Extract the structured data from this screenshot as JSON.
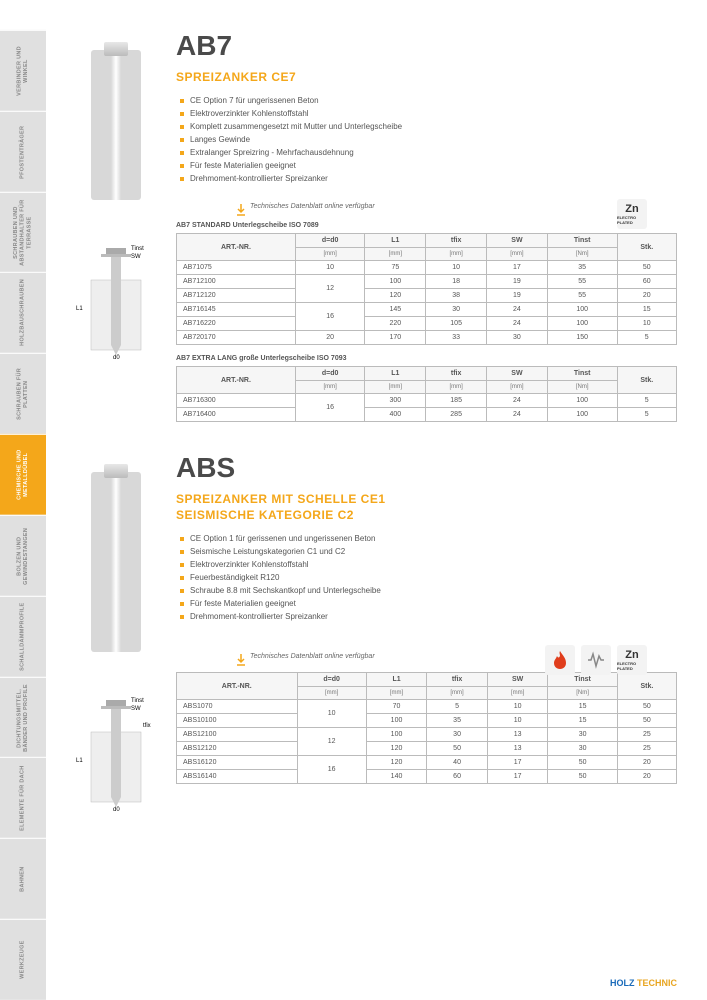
{
  "colors": {
    "accent": "#f4a71a",
    "text": "#333333",
    "grid": "#bbbbbb",
    "bg": "#ffffff",
    "holz": "#1a6bba",
    "footer_accent": "#e8a520"
  },
  "sidebar": [
    {
      "label": "VERBINDER UND WINKEL",
      "color": "#e0e0e0"
    },
    {
      "label": "PFOSTENTRÄGER",
      "color": "#e0e0e0"
    },
    {
      "label": "SCHRAUBEN UND ABSTANDHALTER FÜR TERRASSE",
      "color": "#e0e0e0"
    },
    {
      "label": "HOLZBAUSCHRAUBEN",
      "color": "#e0e0e0"
    },
    {
      "label": "SCHRAUBEN FÜR PLATTEN",
      "color": "#e0e0e0"
    },
    {
      "label": "CHEMISCHE UND METALLDÜBEL",
      "color": "#f4a71a"
    },
    {
      "label": "BOLZEN UND GEWINDESTANGEN",
      "color": "#e0e0e0"
    },
    {
      "label": "SCHALLDÄMMPROFILE",
      "color": "#e0e0e0"
    },
    {
      "label": "DICHTUNGSMITTEL, BÄNDER UND PROFILE",
      "color": "#e0e0e0"
    },
    {
      "label": "ELEMENTE FÜR DACH",
      "color": "#e0e0e0"
    },
    {
      "label": "BAHNEN",
      "color": "#e0e0e0"
    },
    {
      "label": "WERKZEUGE",
      "color": "#e0e0e0"
    }
  ],
  "ab7": {
    "title": "AB7",
    "subtitle": "SPREIZANKER CE7",
    "features": [
      "CE Option 7 für ungerissenen Beton",
      "Elektroverzinkter Kohlenstoffstahl",
      "Komplett zusammengesetzt mit Mutter und Unterlegscheibe",
      "Langes Gewinde",
      "Extralanger Spreizring - Mehrfachausdehnung",
      "Für feste Materialien geeignet",
      "Drehmoment-kontrollierter Spreizanker"
    ],
    "notice": "Technisches Datenblatt online verfügbar",
    "anchor_height": 150,
    "diagram_labels": {
      "tinst": "Tinst",
      "sw": "SW",
      "l1": "L1",
      "d0": "d0"
    },
    "table1": {
      "caption": "AB7 STANDARD Unterlegscheibe ISO 7089",
      "columns": [
        "ART.-NR.",
        "d=d0",
        "L1",
        "tfix",
        "SW",
        "Tinst",
        "Stk."
      ],
      "units": [
        "",
        "[mm]",
        "[mm]",
        "[mm]",
        "[mm]",
        "[Nm]",
        ""
      ],
      "rows": [
        [
          "AB71075",
          {
            "v": "10",
            "rowspan": 1
          },
          "75",
          "10",
          "17",
          "35",
          "50"
        ],
        [
          "AB712100",
          {
            "v": "12",
            "rowspan": 2
          },
          "100",
          "18",
          "19",
          "55",
          "60"
        ],
        [
          "AB712120",
          null,
          "120",
          "38",
          "19",
          "55",
          "20"
        ],
        [
          "AB716145",
          {
            "v": "16",
            "rowspan": 2
          },
          "145",
          "30",
          "24",
          "100",
          "15"
        ],
        [
          "AB716220",
          null,
          "220",
          "105",
          "24",
          "100",
          "10"
        ],
        [
          "AB720170",
          {
            "v": "20",
            "rowspan": 1
          },
          "170",
          "33",
          "30",
          "150",
          "5"
        ]
      ]
    },
    "table2": {
      "caption": "AB7 EXTRA LANG große Unterlegscheibe ISO 7093",
      "columns": [
        "ART.-NR.",
        "d=d0",
        "L1",
        "tfix",
        "SW",
        "Tinst",
        "Stk."
      ],
      "units": [
        "",
        "[mm]",
        "[mm]",
        "[mm]",
        "[mm]",
        "[Nm]",
        ""
      ],
      "rows": [
        [
          "AB716300",
          {
            "v": "16",
            "rowspan": 2
          },
          "300",
          "185",
          "24",
          "100",
          "5"
        ],
        [
          "AB716400",
          null,
          "400",
          "285",
          "24",
          "100",
          "5"
        ]
      ]
    },
    "badges": [
      "zn"
    ]
  },
  "abs": {
    "title": "ABS",
    "subtitle1": "SPREIZANKER MIT SCHELLE CE1",
    "subtitle2": "SEISMISCHE KATEGORIE C2",
    "features": [
      "CE Option 1 für gerissenen und ungerissenen Beton",
      "Seismische Leistungskategorien C1 und C2",
      "Elektroverzinkter Kohlenstoffstahl",
      "Feuerbeständigkeit R120",
      "Schraube 8.8 mit Sechskantkopf und Unterlegscheibe",
      "Für feste Materialien geeignet",
      "Drehmoment-kontrollierter Spreizanker"
    ],
    "notice": "Technisches Datenblatt online verfügbar",
    "anchor_height": 180,
    "diagram_labels": {
      "tinst": "Tinst",
      "sw": "SW",
      "tfix": "tfix",
      "l1": "L1",
      "d0": "d0"
    },
    "table1": {
      "columns": [
        "ART.-NR.",
        "d=d0",
        "L1",
        "tfix",
        "SW",
        "Tinst",
        "Stk."
      ],
      "units": [
        "",
        "[mm]",
        "[mm]",
        "[mm]",
        "[mm]",
        "[Nm]",
        ""
      ],
      "rows": [
        [
          "ABS1070",
          {
            "v": "10",
            "rowspan": 2
          },
          "70",
          "5",
          "10",
          "15",
          "50"
        ],
        [
          "ABS10100",
          null,
          "100",
          "35",
          "10",
          "15",
          "50"
        ],
        [
          "ABS12100",
          {
            "v": "12",
            "rowspan": 2
          },
          "100",
          "30",
          "13",
          "30",
          "25"
        ],
        [
          "ABS12120",
          null,
          "120",
          "50",
          "13",
          "30",
          "25"
        ],
        [
          "ABS16120",
          {
            "v": "16",
            "rowspan": 2
          },
          "120",
          "40",
          "17",
          "50",
          "20"
        ],
        [
          "ABS16140",
          null,
          "140",
          "60",
          "17",
          "50",
          "20"
        ]
      ]
    },
    "badges": [
      "fire",
      "seismic",
      "zn"
    ]
  },
  "footer": {
    "holz": "HOLZ",
    "tech": "TECHNIC"
  },
  "zn_badge": {
    "big": "Zn",
    "small": "ELECTRO PLATED"
  }
}
